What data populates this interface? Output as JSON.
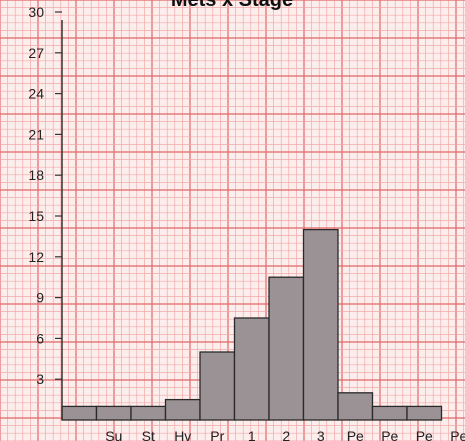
{
  "chart_data": {
    "type": "bar",
    "title": "Mets x Stage",
    "xlabel": "",
    "ylabel": "",
    "categories": [
      "",
      "Su",
      "St",
      "Hv",
      "Pr",
      "1",
      "2",
      "3",
      "Pe",
      "Pe",
      "Pe",
      "Pe"
    ],
    "values": [
      1,
      1,
      1,
      1.5,
      5,
      7.5,
      10.5,
      14,
      2,
      1,
      1,
      0
    ],
    "yticks": [
      3,
      6,
      9,
      12,
      15,
      18,
      21,
      24,
      27,
      30
    ],
    "ylim": [
      0,
      31
    ],
    "grid": true,
    "colors": {
      "bar_fill": "#9a9294",
      "bar_stroke": "#2a2a2a",
      "grid_minor": "#f2a9a9",
      "grid_major": "#e06666",
      "background": "#fdeeee",
      "axis": "#333333"
    }
  }
}
